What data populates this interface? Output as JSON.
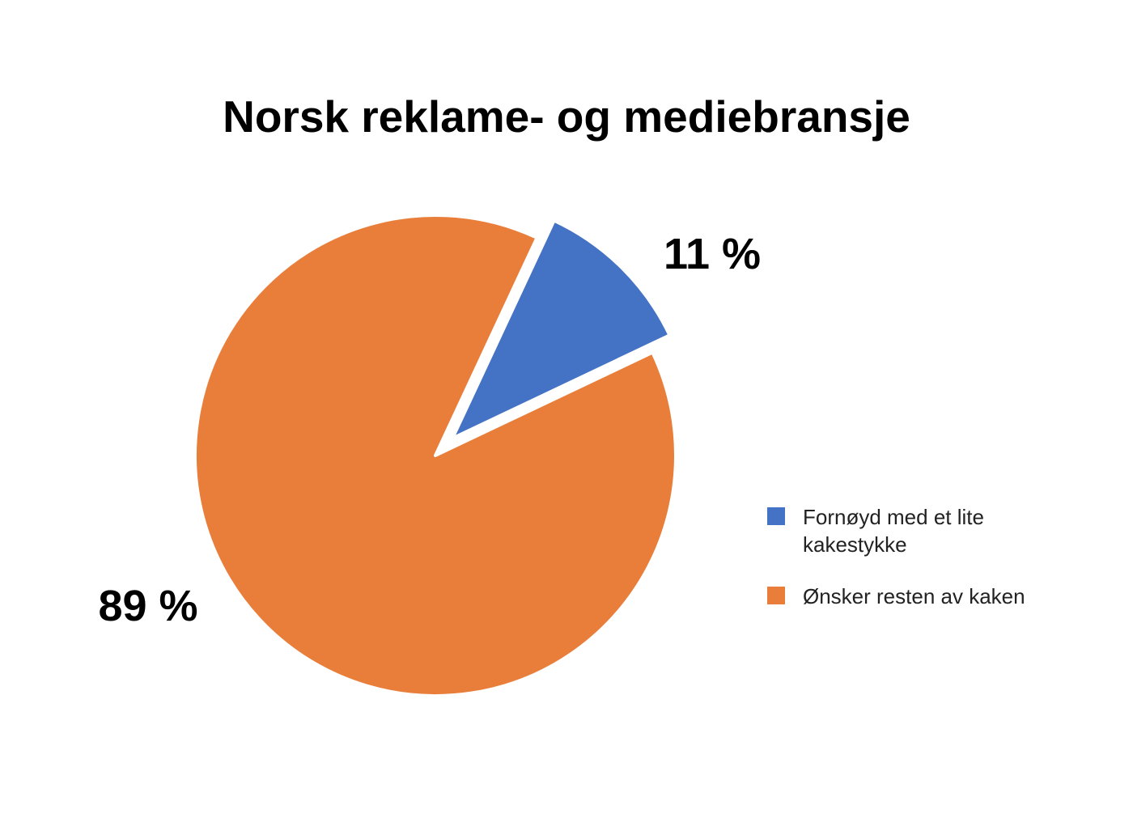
{
  "chart_data": {
    "type": "pie",
    "title": "Norsk reklame- og mediebransje",
    "slices": [
      {
        "name": "Fornøyd med et lite kakestykke",
        "value": 11,
        "label": "11 %",
        "color": "#4472C4",
        "exploded": true
      },
      {
        "name": "Ønsker resten av kaken",
        "value": 89,
        "label": "89 %",
        "color": "#E97E3B",
        "exploded": false
      }
    ],
    "legend_position": "right"
  }
}
